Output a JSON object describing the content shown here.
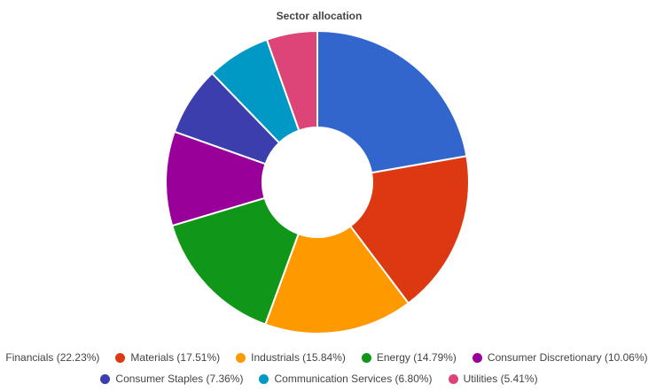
{
  "chart_data": {
    "type": "pie",
    "variant": "donut",
    "title": "Sector allocation",
    "legend_position": "bottom",
    "slices": [
      {
        "label": "Financials",
        "value": 22.23,
        "legend": "Financials (22.23%)",
        "color": "#3366cc"
      },
      {
        "label": "Materials",
        "value": 17.51,
        "legend": "Materials (17.51%)",
        "color": "#dc3912"
      },
      {
        "label": "Industrials",
        "value": 15.84,
        "legend": "Industrials (15.84%)",
        "color": "#ff9900"
      },
      {
        "label": "Energy",
        "value": 14.79,
        "legend": "Energy (14.79%)",
        "color": "#109618"
      },
      {
        "label": "Consumer Discretionary",
        "value": 10.06,
        "legend": "Consumer Discretionary (10.06%)",
        "color": "#990099"
      },
      {
        "label": "Consumer Staples",
        "value": 7.36,
        "legend": "Consumer Staples (7.36%)",
        "color": "#3b3eac"
      },
      {
        "label": "Communication Services",
        "value": 6.8,
        "legend": "Communication Services (6.80%)",
        "color": "#0099c6"
      },
      {
        "label": "Utilities",
        "value": 5.41,
        "legend": "Utilities (5.41%)",
        "color": "#dd4477"
      }
    ]
  }
}
